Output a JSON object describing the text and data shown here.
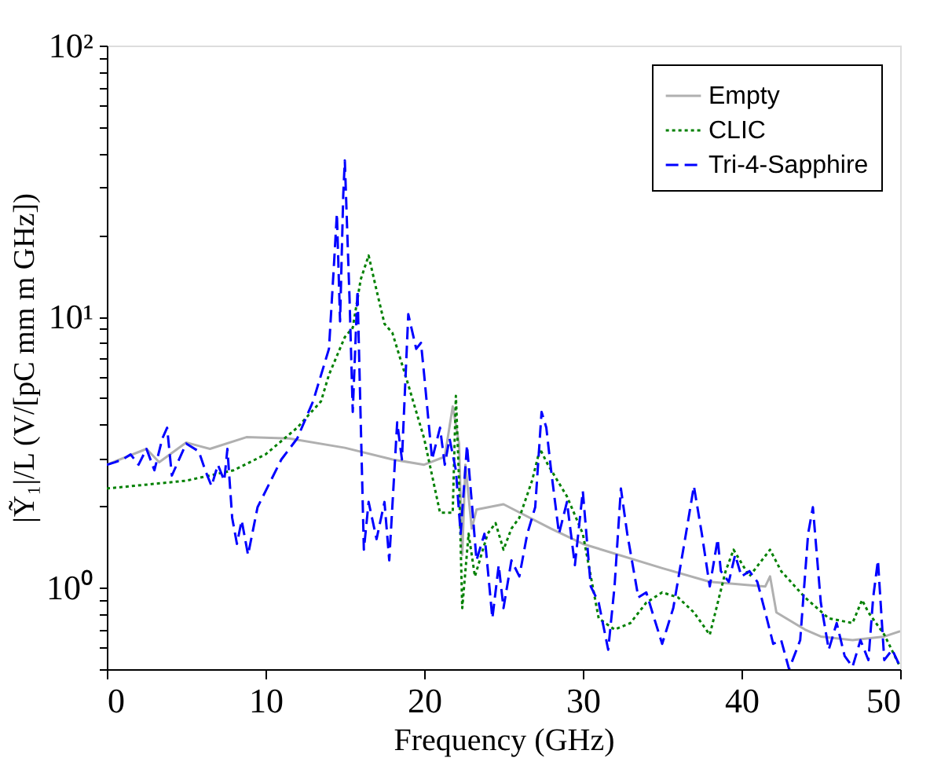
{
  "chart_data": {
    "type": "line",
    "xlabel": "Frequency (GHz)",
    "ylabel": "|Ỹ₁|/L (V/[pC mm m GHz])",
    "log": true,
    "grid": false,
    "legend": "top right",
    "xlim": [
      0,
      50
    ],
    "xticks": [
      0,
      10,
      20,
      30,
      40,
      50
    ],
    "ylim": [
      0.5,
      100
    ],
    "yticks": [
      {
        "value": 0.5,
        "label": null
      },
      {
        "value": 0.6,
        "label": null
      },
      {
        "value": 0.7,
        "label": null
      },
      {
        "value": 0.8,
        "label": null
      },
      {
        "value": 0.9,
        "label": null
      },
      {
        "value": 1,
        "label": "10⁰"
      },
      {
        "value": 2,
        "label": null
      },
      {
        "value": 3,
        "label": null
      },
      {
        "value": 4,
        "label": null
      },
      {
        "value": 5,
        "label": null
      },
      {
        "value": 6,
        "label": null
      },
      {
        "value": 7,
        "label": null
      },
      {
        "value": 8,
        "label": null
      },
      {
        "value": 9,
        "label": null
      },
      {
        "value": 10,
        "label": "10¹"
      },
      {
        "value": 20,
        "label": null
      },
      {
        "value": 30,
        "label": null
      },
      {
        "value": 40,
        "label": null
      },
      {
        "value": 50,
        "label": null
      },
      {
        "value": 60,
        "label": null
      },
      {
        "value": 70,
        "label": null
      },
      {
        "value": 80,
        "label": null
      },
      {
        "value": 90,
        "label": null
      },
      {
        "value": 100,
        "label": "10²"
      }
    ],
    "series": [
      {
        "name": "Empty",
        "color": "#b0b0b0",
        "line_style": "solid",
        "x": [
          0,
          2.5,
          3.3,
          5,
          6.5,
          8.8,
          11.5,
          15,
          18,
          20,
          21.3,
          21.8,
          22.2,
          22.4,
          22.6,
          23,
          23.3,
          25,
          28,
          30,
          35,
          38,
          41.5,
          41.8,
          42.2,
          44,
          45,
          47,
          49,
          50
        ],
        "values": [
          2.84,
          3.25,
          2.9,
          3.43,
          3.25,
          3.59,
          3.55,
          3.28,
          2.97,
          2.84,
          3.04,
          4.66,
          3.4,
          1.32,
          2.84,
          1.65,
          1.94,
          2.03,
          1.65,
          1.45,
          1.18,
          1.05,
          1.01,
          1.1,
          0.81,
          0.7,
          0.66,
          0.64,
          0.66,
          0.69
        ]
      },
      {
        "name": "CLIC",
        "color": "#008000",
        "line_style": "dotted",
        "x": [
          0,
          5,
          8,
          10,
          12,
          13.5,
          14,
          15,
          15.5,
          16,
          16.5,
          17,
          17.5,
          18,
          19,
          20,
          21,
          21.8,
          22,
          22.2,
          22.4,
          22.8,
          23.2,
          24,
          24.5,
          25,
          25.5,
          26,
          26.8,
          27.3,
          27.8,
          29,
          30,
          31,
          32,
          33,
          34,
          35,
          36,
          37,
          38,
          39,
          39.5,
          40.5,
          41.8,
          42.5,
          44,
          45.5,
          47,
          47.6,
          48,
          49,
          50
        ],
        "values": [
          2.32,
          2.48,
          2.71,
          3.1,
          3.89,
          4.87,
          6.1,
          8.4,
          9.1,
          13.7,
          16.8,
          12.5,
          9.4,
          8.7,
          5.6,
          3.55,
          1.89,
          1.89,
          5.1,
          2.48,
          0.84,
          1.58,
          1.1,
          1.58,
          1.73,
          1.38,
          1.65,
          1.81,
          2.48,
          3.25,
          2.84,
          2.17,
          1.58,
          0.77,
          0.7,
          0.74,
          0.88,
          0.96,
          0.92,
          0.81,
          0.67,
          1.15,
          1.38,
          1.1,
          1.38,
          1.15,
          0.92,
          0.77,
          0.74,
          0.9,
          0.81,
          0.67,
          0.51
        ]
      },
      {
        "name": "Tri-4-Sapphire",
        "color": "#0000ff",
        "line_style": "dashed",
        "x": [
          0,
          0.5,
          1,
          1.5,
          2,
          2.5,
          3,
          3.5,
          3.8,
          4.1,
          5,
          5.8,
          6.2,
          6.6,
          7,
          7.4,
          7.6,
          7.9,
          8.2,
          8.5,
          8.9,
          9.5,
          11,
          12,
          13,
          14,
          14.3,
          14.5,
          14.7,
          14.9,
          15,
          15.3,
          15.5,
          15.8,
          16.2,
          16.5,
          17,
          17.5,
          17.8,
          18.3,
          18.6,
          19,
          19.5,
          19.8,
          20,
          20.5,
          21,
          21.3,
          21.6,
          22,
          22.3,
          22.7,
          23,
          23.3,
          23.8,
          24.3,
          24.7,
          25,
          25.5,
          26,
          26.5,
          27,
          27.4,
          27.7,
          28,
          28.5,
          29,
          29.5,
          30,
          30.5,
          31,
          31.6,
          32,
          32.4,
          32.8,
          33.5,
          34,
          34.5,
          35,
          35.7,
          36.5,
          37,
          37.5,
          38,
          38.5,
          38.7,
          39.2,
          39.6,
          40,
          40.5,
          41,
          41.5,
          42,
          42.5,
          43,
          43.7,
          44.2,
          44.5,
          45,
          45.5,
          46,
          46.5,
          47,
          47.5,
          48,
          48.3,
          48.6,
          49,
          49.5,
          50
        ],
        "values": [
          2.84,
          2.9,
          2.97,
          3.1,
          2.84,
          3.25,
          2.71,
          3.55,
          3.89,
          2.59,
          3.4,
          3.18,
          2.71,
          2.37,
          2.84,
          2.48,
          3.25,
          1.81,
          1.45,
          1.77,
          1.32,
          1.98,
          2.97,
          3.55,
          4.87,
          7.6,
          15.0,
          24,
          9.6,
          28,
          37.7,
          11.5,
          4.45,
          12.5,
          1.38,
          2.07,
          1.51,
          2.07,
          1.26,
          4.07,
          2.97,
          10.2,
          7.6,
          8.0,
          6.1,
          2.97,
          3.89,
          2.84,
          3.55,
          2.71,
          1.58,
          3.35,
          2.07,
          1.26,
          1.58,
          0.77,
          1.21,
          0.84,
          1.26,
          1.1,
          1.58,
          1.98,
          4.45,
          3.89,
          2.71,
          1.58,
          2.07,
          1.21,
          2.27,
          1.01,
          0.88,
          0.59,
          1.01,
          2.32,
          1.58,
          0.92,
          0.96,
          0.77,
          0.62,
          0.84,
          1.58,
          2.37,
          1.58,
          1.01,
          1.51,
          1.15,
          1.05,
          1.32,
          1.1,
          1.15,
          1.05,
          0.81,
          0.62,
          0.64,
          0.5,
          0.64,
          1.58,
          1.98,
          0.88,
          0.59,
          0.74,
          0.56,
          0.51,
          0.64,
          0.54,
          0.92,
          1.26,
          0.54,
          0.59,
          0.51
        ]
      }
    ]
  }
}
